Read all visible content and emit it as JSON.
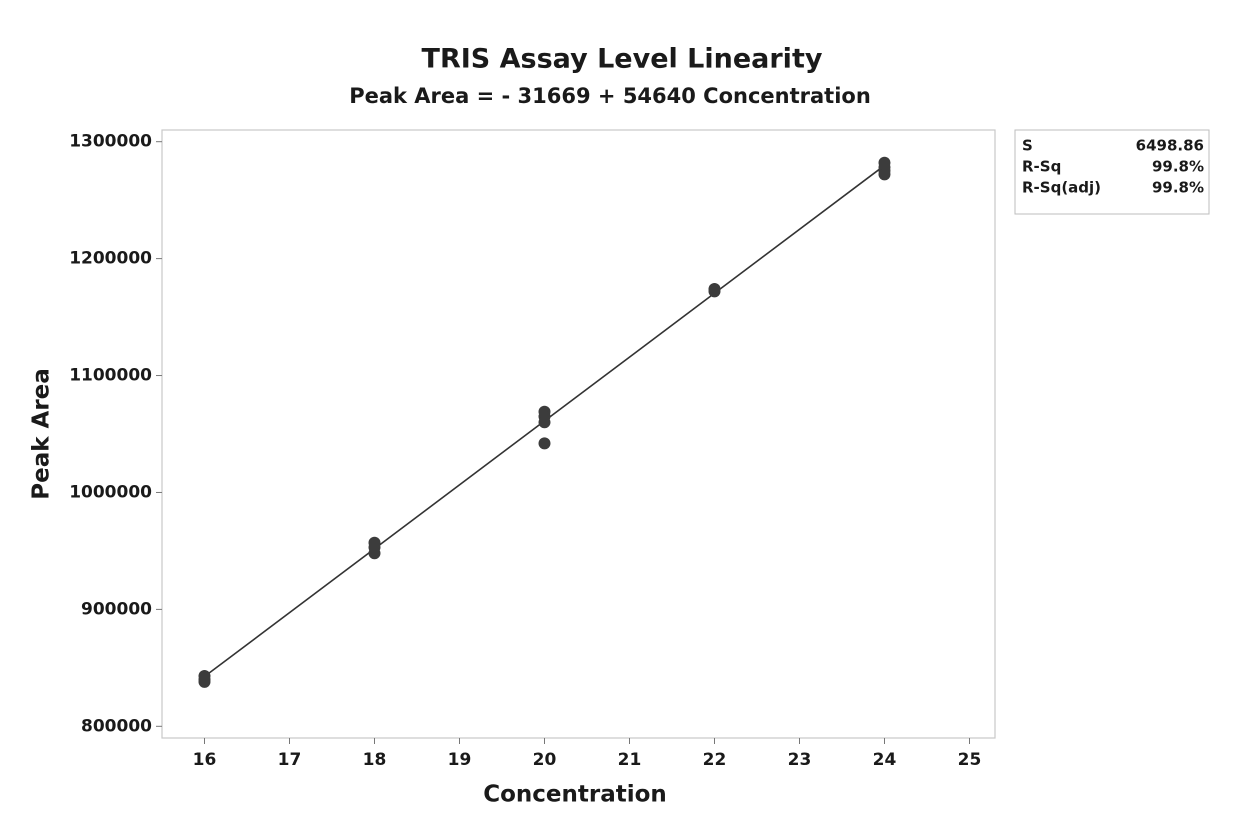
{
  "chart_data": {
    "type": "scatter",
    "title": "TRIS Assay Level Linearity",
    "subtitle": "Peak Area = - 31669 + 54640 Concentration",
    "x_label": "Concentration",
    "y_label": "Peak Area",
    "series": [
      {
        "name": "Peak Area",
        "color": "#3c3c3c",
        "x": [
          16,
          16,
          16,
          18,
          18,
          18,
          20,
          20,
          20,
          20,
          22,
          22,
          24,
          24,
          24,
          24
        ],
        "values": [
          838000,
          840000,
          843000,
          957000,
          953000,
          948000,
          1069000,
          1065000,
          1060000,
          1042000,
          1174000,
          1172000,
          1282000,
          1278000,
          1275000,
          1272000
        ]
      }
    ],
    "fit": {
      "intercept": -31669,
      "slope": 54640,
      "color": "#333333"
    },
    "xlim": [
      15.5,
      25.3
    ],
    "ylim": [
      790000,
      1310000
    ],
    "xticks": [
      16,
      17,
      18,
      19,
      20,
      21,
      22,
      23,
      24,
      25
    ],
    "yticks": [
      800000,
      900000,
      1000000,
      1100000,
      1200000,
      1300000
    ],
    "grid": false,
    "stats": [
      {
        "label": "S",
        "value": "6498.86"
      },
      {
        "label": "R-Sq",
        "value": "99.8%"
      },
      {
        "label": "R-Sq(adj)",
        "value": "99.8%"
      }
    ]
  }
}
